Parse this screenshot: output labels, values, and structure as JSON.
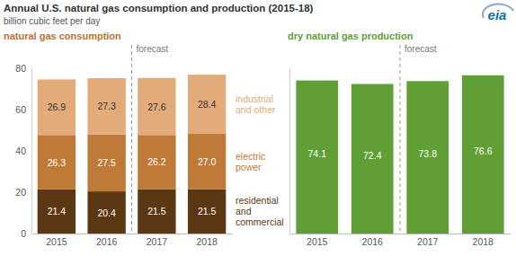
{
  "title": "Annual U.S. natural gas consumption and production (2015-18)",
  "subtitle": "billion cubic feet per day",
  "logo": "eia",
  "chart_data": [
    {
      "type": "bar",
      "title": "natural gas consumption",
      "stacked": true,
      "data_labels": true,
      "annotations": [
        "forecast"
      ],
      "categories": [
        "2015",
        "2016",
        "2017",
        "2018"
      ],
      "series": [
        {
          "name": "residential and commercial",
          "color": "#5c3714",
          "values": [
            21.4,
            20.4,
            21.5,
            21.5
          ]
        },
        {
          "name": "electric power",
          "color": "#bf7a38",
          "values": [
            26.3,
            27.5,
            26.2,
            27.0
          ],
          "value_labels": [
            "26.3",
            "27.5",
            "26.2",
            "27.0"
          ]
        },
        {
          "name": "industrial and other",
          "color": "#e3ab7a",
          "values": [
            26.9,
            27.3,
            27.6,
            28.4
          ]
        }
      ],
      "ylim": [
        0,
        80
      ],
      "yticks": [
        0,
        20,
        40,
        60,
        80
      ],
      "grid": false
    },
    {
      "type": "bar",
      "title": "dry natural gas production",
      "data_labels": true,
      "annotations": [
        "forecast"
      ],
      "categories": [
        "2015",
        "2016",
        "2017",
        "2018"
      ],
      "values": [
        74.1,
        72.4,
        73.8,
        76.6
      ],
      "color": "#5f9f35",
      "ylim": [
        0,
        80
      ],
      "tick_labels": false,
      "grid": false
    }
  ]
}
